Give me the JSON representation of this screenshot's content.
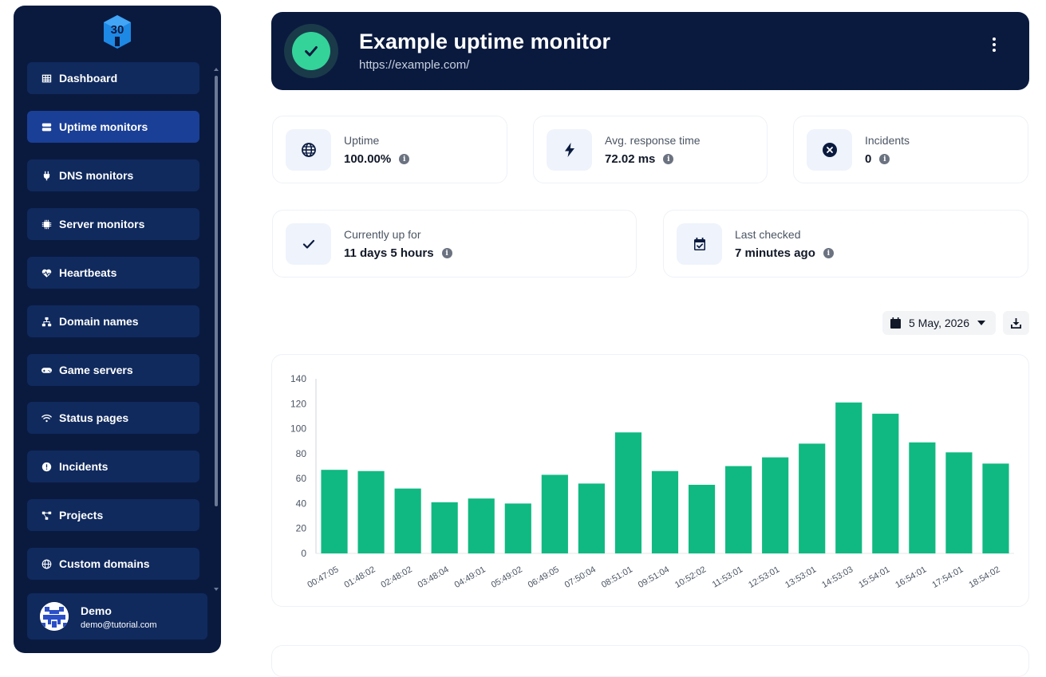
{
  "sidebar": {
    "logo_text": "30",
    "items": [
      {
        "label": "Dashboard",
        "icon": "table-icon",
        "active": false
      },
      {
        "label": "Uptime monitors",
        "icon": "server-icon",
        "active": true
      },
      {
        "label": "DNS monitors",
        "icon": "plug-icon",
        "active": false
      },
      {
        "label": "Server monitors",
        "icon": "microchip-icon",
        "active": false
      },
      {
        "label": "Heartbeats",
        "icon": "heart-pulse-icon",
        "active": false
      },
      {
        "label": "Domain names",
        "icon": "network-icon",
        "active": false
      },
      {
        "label": "Game servers",
        "icon": "gamepad-icon",
        "active": false
      },
      {
        "label": "Status pages",
        "icon": "wifi-icon",
        "active": false
      },
      {
        "label": "Incidents",
        "icon": "alert-circle-icon",
        "active": false
      },
      {
        "label": "Projects",
        "icon": "diagram-icon",
        "active": false
      },
      {
        "label": "Custom domains",
        "icon": "globe-icon",
        "active": false
      }
    ],
    "user": {
      "name": "Demo",
      "email": "demo@tutorial.com"
    }
  },
  "header": {
    "title": "Example uptime monitor",
    "url": "https://example.com/",
    "status": "up",
    "status_color": "#34d399"
  },
  "stats": {
    "uptime": {
      "label": "Uptime",
      "value": "100.00%"
    },
    "response": {
      "label": "Avg. response time",
      "value": "72.02 ms"
    },
    "incidents": {
      "label": "Incidents",
      "value": "0"
    },
    "up_for": {
      "label": "Currently up for",
      "value": "11 days 5 hours"
    },
    "last_checked": {
      "label": "Last checked",
      "value": "7 minutes ago"
    }
  },
  "date_filter": {
    "value": "5 May, 2026"
  },
  "chart_data": {
    "type": "bar",
    "categories": [
      "00:47:05",
      "01:48:02",
      "02:48:02",
      "03:48:04",
      "04:49:01",
      "05:49:02",
      "06:49:05",
      "07:50:04",
      "08:51:01",
      "09:51:04",
      "10:52:02",
      "11:53:01",
      "12:53:01",
      "13:53:01",
      "14:53:03",
      "15:54:01",
      "16:54:01",
      "17:54:01",
      "18:54:02"
    ],
    "values": [
      67,
      66,
      52,
      41,
      44,
      40,
      63,
      56,
      97,
      66,
      55,
      70,
      77,
      88,
      121,
      112,
      89,
      81,
      72
    ],
    "ylim": [
      0,
      140
    ],
    "yticks": [
      0,
      20,
      40,
      60,
      80,
      100,
      120,
      140
    ],
    "bar_color": "#10b981",
    "grid": false
  }
}
